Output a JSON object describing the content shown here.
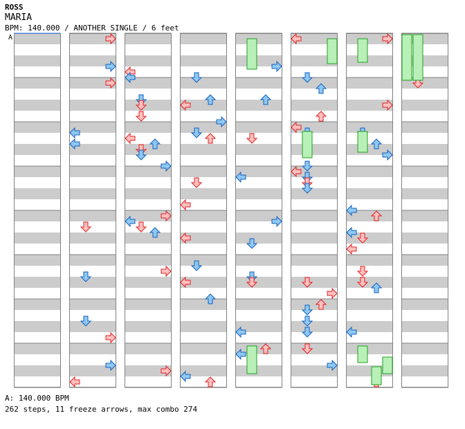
{
  "header": {
    "artist": "ROSS",
    "title": "MARIA",
    "meta": "BPM: 140.000 / ANOTHER SINGLE / 6 feet"
  },
  "chart": {
    "bpm_marker": "A",
    "colors": {
      "red_fill": "#ffc0c0",
      "red_stroke": "#e02020",
      "blue_fill": "#90c8f0",
      "blue_stroke": "#1060c0",
      "freeze_fill": "#b8f0b8",
      "freeze_stroke": "#20a020",
      "stripe": "#cccccc"
    },
    "column_count": 8,
    "measures_per_column": 8
  },
  "footer": {
    "bpm": "A: 140.000 BPM",
    "stats": "262 steps, 11 freeze arrows, max combo 274"
  }
}
